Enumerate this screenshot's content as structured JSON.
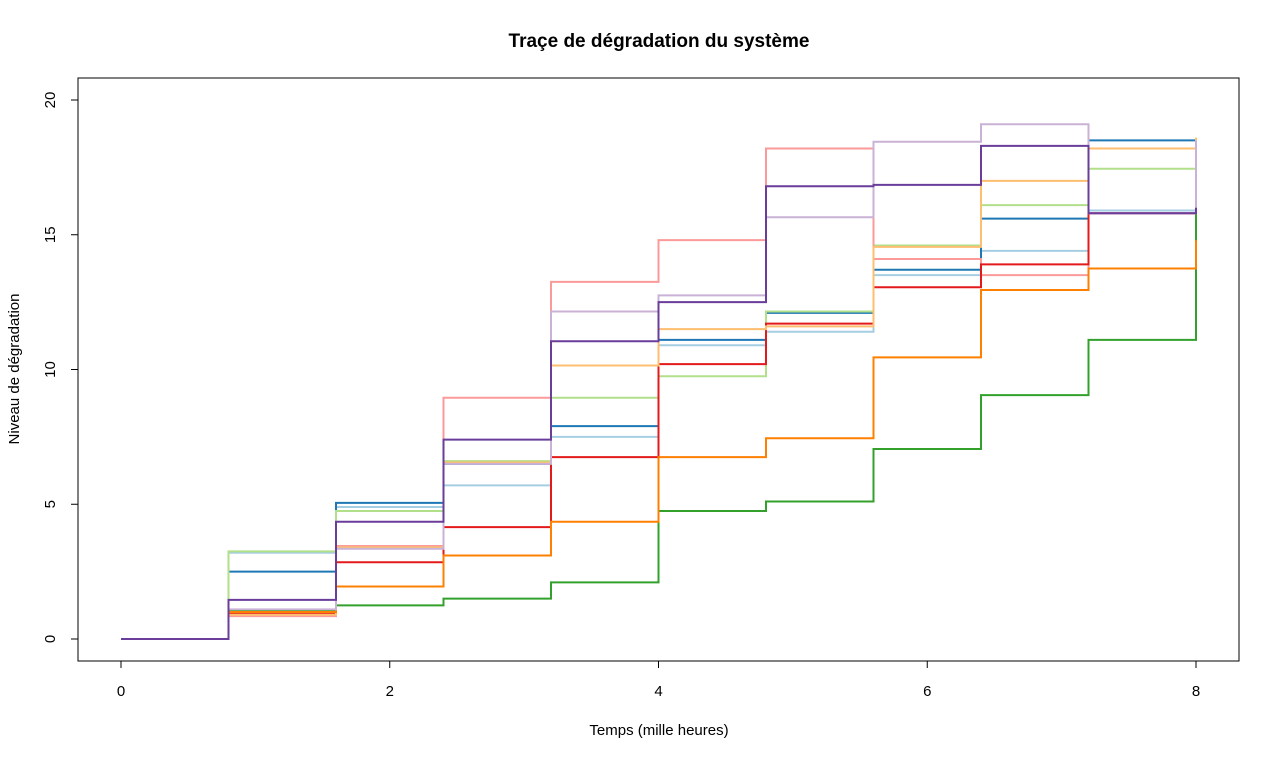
{
  "chart_data": {
    "type": "line",
    "step": true,
    "title": "Traçe de dégradation du système",
    "xlabel": "Temps (mille heures)",
    "ylabel": "Niveau de dégradation",
    "xlim": [
      0,
      8
    ],
    "ylim": [
      0,
      20
    ],
    "x_ticks": [
      "0",
      "2",
      "4",
      "6",
      "8"
    ],
    "y_ticks": [
      "0",
      "5",
      "10",
      "15",
      "20"
    ],
    "grid": false,
    "x": [
      0,
      0.8,
      1.6,
      2.4,
      3.2,
      4.0,
      4.8,
      5.6,
      6.4,
      7.2,
      8.0
    ],
    "series": [
      {
        "color": "#a6cee3",
        "values": [
          0,
          3.2,
          4.9,
          5.7,
          7.5,
          10.9,
          11.4,
          13.5,
          14.4,
          15.9,
          16.0
        ]
      },
      {
        "color": "#1f78b4",
        "values": [
          0,
          2.5,
          5.05,
          6.5,
          7.9,
          11.1,
          12.1,
          13.7,
          15.6,
          18.5,
          16.0
        ]
      },
      {
        "color": "#b2df8a",
        "values": [
          0,
          3.25,
          4.75,
          6.6,
          8.95,
          9.75,
          12.15,
          14.6,
          16.1,
          17.45,
          18.6
        ]
      },
      {
        "color": "#33a02c",
        "values": [
          0,
          1.05,
          1.25,
          1.5,
          2.1,
          4.75,
          5.1,
          7.05,
          9.05,
          11.1,
          15.9
        ]
      },
      {
        "color": "#fb9a99",
        "values": [
          0,
          0.85,
          3.45,
          8.95,
          13.25,
          14.8,
          18.2,
          14.1,
          13.5,
          15.8,
          16.0
        ]
      },
      {
        "color": "#e31a1c",
        "values": [
          0,
          0.95,
          2.85,
          4.15,
          6.75,
          10.2,
          11.7,
          13.05,
          13.9,
          15.8,
          18.5
        ]
      },
      {
        "color": "#fdbf6f",
        "values": [
          0,
          0.9,
          3.4,
          6.55,
          10.15,
          11.5,
          11.6,
          14.55,
          17.0,
          18.2,
          18.6
        ]
      },
      {
        "color": "#ff7f00",
        "values": [
          0,
          1.0,
          1.95,
          3.1,
          4.35,
          6.75,
          7.45,
          10.45,
          12.95,
          13.75,
          14.8
        ]
      },
      {
        "color": "#cab2d6",
        "values": [
          0,
          1.1,
          3.35,
          6.5,
          12.15,
          12.75,
          15.65,
          18.45,
          19.1,
          15.8,
          18.5
        ]
      },
      {
        "color": "#6a3d9a",
        "values": [
          0,
          1.45,
          4.35,
          7.4,
          11.05,
          12.5,
          16.8,
          16.85,
          18.3,
          15.8,
          16.0
        ]
      }
    ]
  }
}
